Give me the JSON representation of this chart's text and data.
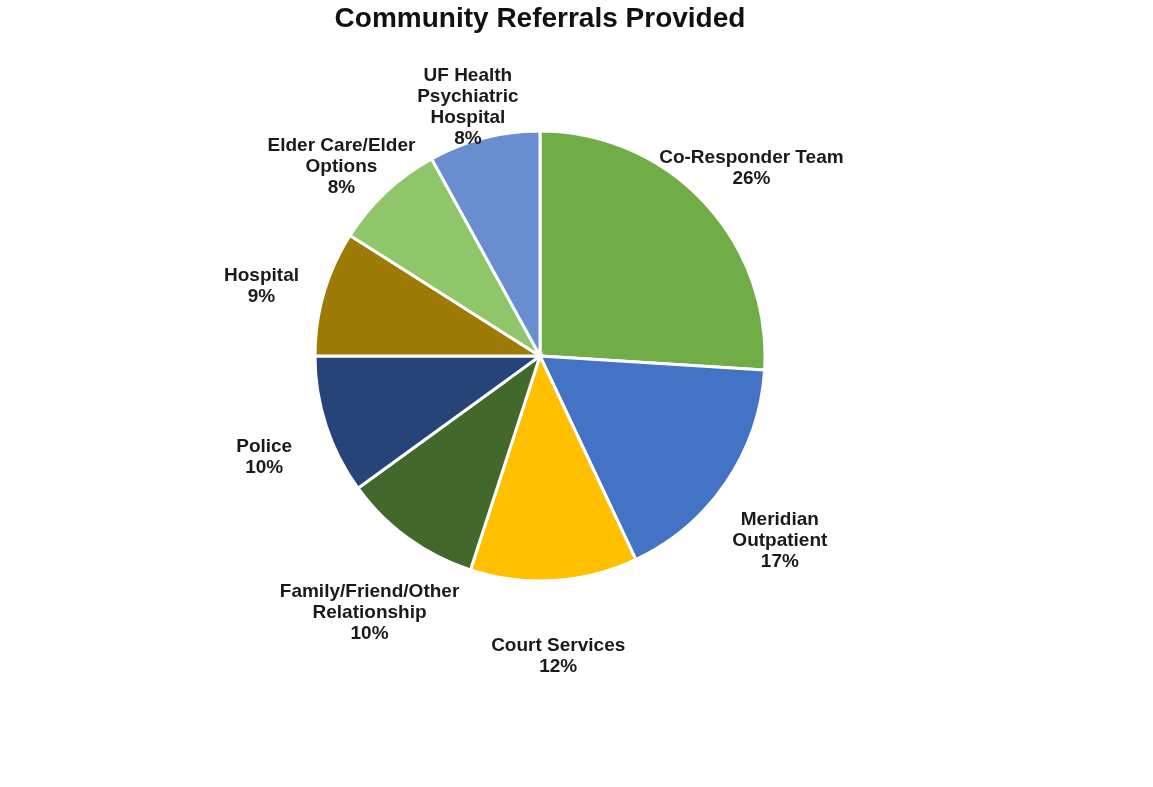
{
  "chart_data": {
    "type": "pie",
    "title": "Community Referrals Provided",
    "categories": [
      "Co-Responder Team",
      "Meridian\nOutpatient",
      "Court Services",
      "Family/Friend/Other\nRelationship",
      "Police",
      "Hospital",
      "Elder Care/Elder\nOptions",
      "UF Health\nPsychiatric\nHospital"
    ],
    "values": [
      26,
      17,
      12,
      10,
      10,
      9,
      8,
      8
    ],
    "value_labels": [
      "26%",
      "17%",
      "12%",
      "10%",
      "10%",
      "9%",
      "8%",
      "8%"
    ],
    "colors": [
      "#70ad47",
      "#4472c4",
      "#ffc000",
      "#43682b",
      "#264478",
      "#9e7a07",
      "#8fc66a",
      "#698ed0"
    ],
    "legend": false
  }
}
